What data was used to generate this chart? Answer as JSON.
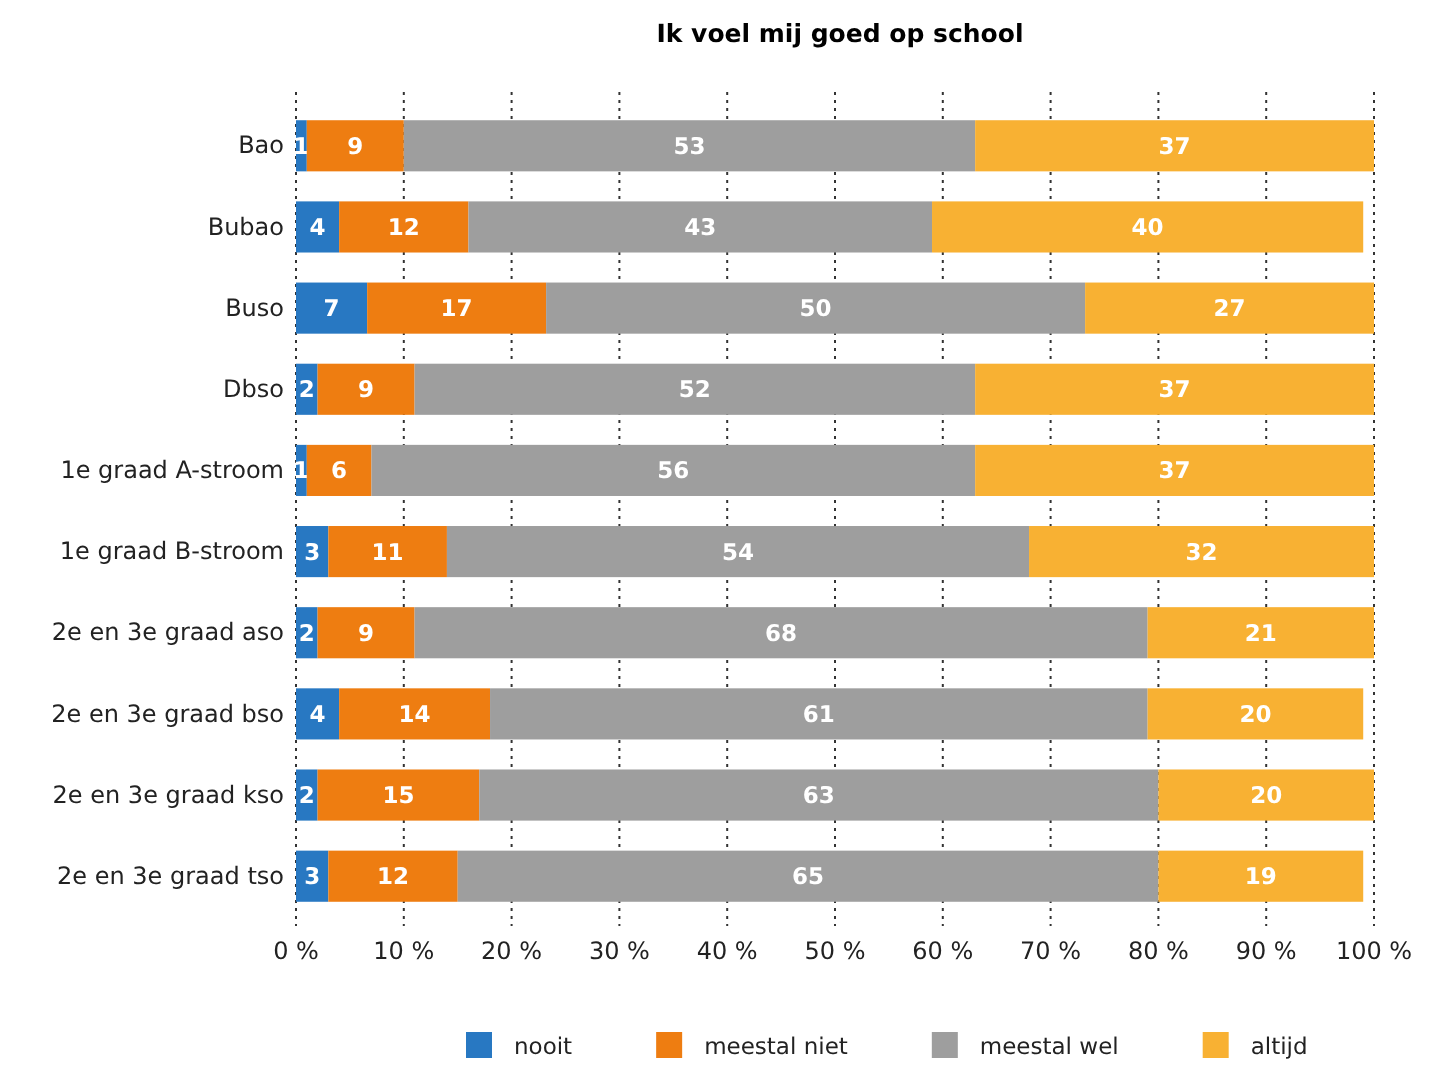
{
  "chart_data": {
    "type": "bar",
    "orientation": "horizontal",
    "stacked": true,
    "title": "Ik voel mij goed op school",
    "categories": [
      "Bao",
      "Bubao",
      "Buso",
      "Dbso",
      "1e graad A-stroom",
      "1e graad B-stroom",
      "2e en 3e graad aso",
      "2e en 3e graad bso",
      "2e en 3e graad kso",
      "2e en 3e graad tso"
    ],
    "series": [
      {
        "name": "nooit",
        "color": "#2878c2",
        "values": [
          1,
          4,
          6.6,
          2,
          1,
          3,
          2,
          4,
          2,
          3
        ],
        "value_labels": [
          "1",
          "4",
          "7",
          "2",
          "1",
          "3",
          "2",
          "4",
          "2",
          "3"
        ]
      },
      {
        "name": "meestal niet",
        "color": "#ee7d11",
        "values": [
          9,
          12,
          16.6,
          9,
          6,
          11,
          9,
          14,
          15,
          12
        ],
        "value_labels": [
          "9",
          "12",
          "17",
          "9",
          "6",
          "11",
          "9",
          "14",
          "15",
          "12"
        ]
      },
      {
        "name": "meestal wel",
        "color": "#9e9e9e",
        "values": [
          53,
          43,
          50,
          52,
          56,
          54,
          68,
          61,
          63,
          65
        ],
        "value_labels": [
          "53",
          "43",
          "50",
          "52",
          "56",
          "54",
          "68",
          "61",
          "63",
          "65"
        ]
      },
      {
        "name": "altijd",
        "color": "#f8b133",
        "values": [
          37,
          40,
          26.8,
          37,
          37,
          32,
          21,
          20,
          20,
          19
        ],
        "value_labels": [
          "37",
          "40",
          "27",
          "37",
          "37",
          "32",
          "21",
          "20",
          "20",
          "19"
        ]
      }
    ],
    "xlim": [
      0,
      100
    ],
    "xticks": [
      {
        "value": 0,
        "label": "0 %"
      },
      {
        "value": 10,
        "label": "10 %"
      },
      {
        "value": 20,
        "label": "20 %"
      },
      {
        "value": 30,
        "label": "30 %"
      },
      {
        "value": 40,
        "label": "40 %"
      },
      {
        "value": 50,
        "label": "50 %"
      },
      {
        "value": 60,
        "label": "60 %"
      },
      {
        "value": 70,
        "label": "70 %"
      },
      {
        "value": 80,
        "label": "80 %"
      },
      {
        "value": 90,
        "label": "90 %"
      },
      {
        "value": 100,
        "label": "100 %"
      }
    ],
    "grid": "x",
    "legend": "bottom"
  }
}
